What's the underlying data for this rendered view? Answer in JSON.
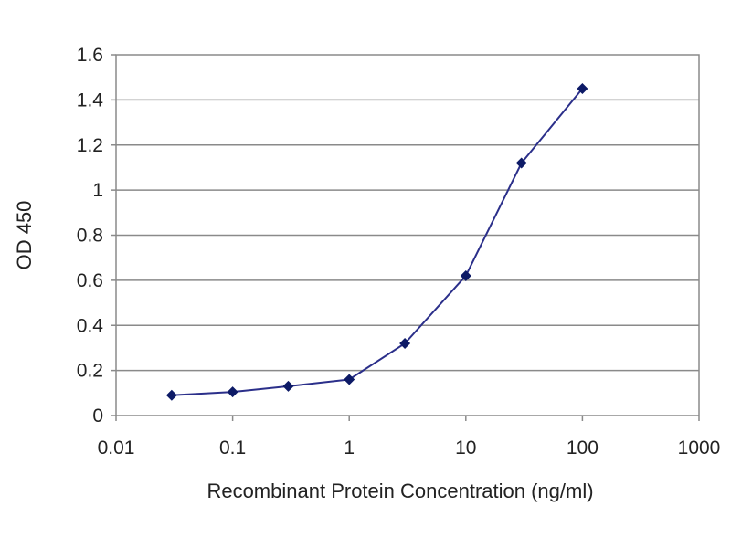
{
  "chart_data": {
    "type": "line",
    "title": "",
    "xlabel": "Recombinant Protein Concentration (ng/ml)",
    "ylabel": "OD 450",
    "x_scale": "log",
    "xlim": [
      0.01,
      1000
    ],
    "ylim": [
      0,
      1.6
    ],
    "x_ticks": [
      0.01,
      0.1,
      1,
      10,
      100,
      1000
    ],
    "x_tick_labels": [
      "0.01",
      "0.1",
      "1",
      "10",
      "100",
      "1000"
    ],
    "y_ticks": [
      0,
      0.2,
      0.4,
      0.6,
      0.8,
      1,
      1.2,
      1.4,
      1.6
    ],
    "y_tick_labels": [
      "0",
      "0.2",
      "0.4",
      "0.6",
      "0.8",
      "1",
      "1.2",
      "1.4",
      "1.6"
    ],
    "grid": "horizontal",
    "legend": "none",
    "series": [
      {
        "x": [
          0.03,
          0.1,
          0.3,
          1,
          3,
          10,
          30,
          100
        ],
        "y": [
          0.09,
          0.105,
          0.13,
          0.16,
          0.32,
          0.62,
          1.12,
          1.45
        ],
        "color": "#2b2f8a",
        "marker": "diamond",
        "marker_color": "#0d1a66"
      }
    ]
  }
}
